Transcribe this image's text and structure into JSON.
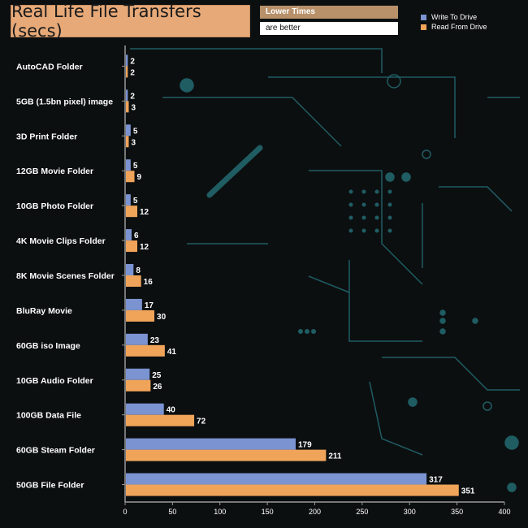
{
  "header": {
    "title": "Real Life File Transfers (secs)",
    "note_line1": "Lower Times",
    "note_line2": "are better"
  },
  "colors": {
    "write": "#7b93d1",
    "read": "#f0a45a",
    "title_bg": "#e7a978",
    "note_bg": "#b8916b",
    "circuit": "#1f5d63"
  },
  "chart_data": {
    "type": "bar",
    "orientation": "horizontal",
    "title": "Real Life File Transfers (secs)",
    "categories": [
      "AutoCAD Folder",
      "5GB (1.5bn pixel) image",
      "3D Print Folder",
      "12GB Movie Folder",
      "10GB Photo Folder",
      "4K Movie Clips Folder",
      "8K Movie Scenes Folder",
      "BluRay Movie",
      "60GB iso Image",
      "10GB Audio Folder",
      "100GB Data File",
      "60GB Steam Folder",
      "50GB File Folder"
    ],
    "series": [
      {
        "name": "Write To  Drive",
        "values": [
          2,
          2,
          5,
          5,
          5,
          6,
          8,
          17,
          23,
          25,
          40,
          179,
          317
        ]
      },
      {
        "name": "Read From  Drive",
        "values": [
          2,
          3,
          3,
          9,
          12,
          12,
          16,
          30,
          41,
          26,
          72,
          211,
          351
        ]
      }
    ],
    "xlim": [
      0,
      400
    ],
    "xticks": [
      0,
      50,
      100,
      150,
      200,
      250,
      300,
      350,
      400
    ],
    "legend_position": "top-right",
    "grid": false,
    "xlabel": "",
    "ylabel": ""
  }
}
